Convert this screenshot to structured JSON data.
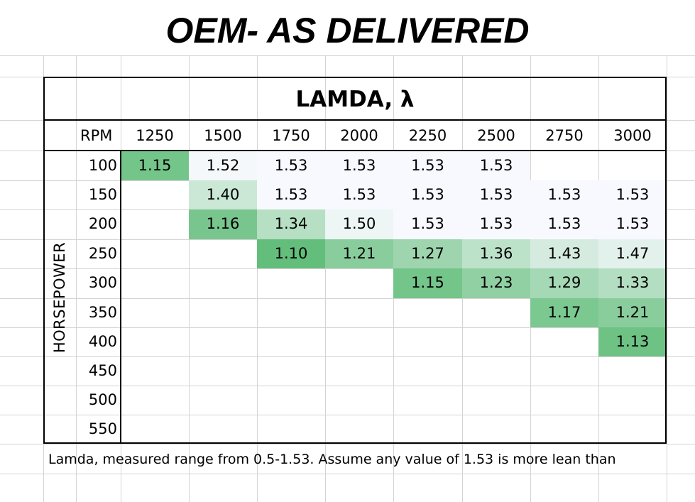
{
  "title": "OEM- AS DELIVERED",
  "chart_data": {
    "type": "heatmap",
    "title": "LAMDA, λ",
    "xlabel": "RPM",
    "ylabel": "HORSEPOWER",
    "x_categories": [
      "1250",
      "1500",
      "1750",
      "2000",
      "2250",
      "2500",
      "2750",
      "3000"
    ],
    "y_categories": [
      "100",
      "150",
      "200",
      "250",
      "300",
      "350",
      "400",
      "450",
      "500",
      "550"
    ],
    "values": [
      [
        1.15,
        1.52,
        1.53,
        1.53,
        1.53,
        1.53,
        null,
        null
      ],
      [
        null,
        1.4,
        1.53,
        1.53,
        1.53,
        1.53,
        1.53,
        1.53
      ],
      [
        null,
        1.16,
        1.34,
        1.5,
        1.53,
        1.53,
        1.53,
        1.53
      ],
      [
        null,
        null,
        1.1,
        1.21,
        1.27,
        1.36,
        1.43,
        1.47
      ],
      [
        null,
        null,
        null,
        null,
        1.15,
        1.23,
        1.29,
        1.33
      ],
      [
        null,
        null,
        null,
        null,
        null,
        null,
        1.17,
        1.21
      ],
      [
        null,
        null,
        null,
        null,
        null,
        null,
        null,
        1.13
      ],
      [
        null,
        null,
        null,
        null,
        null,
        null,
        null,
        null
      ],
      [
        null,
        null,
        null,
        null,
        null,
        null,
        null,
        null
      ],
      [
        null,
        null,
        null,
        null,
        null,
        null,
        null,
        null
      ]
    ],
    "color_scale": {
      "low": "#63BE7B",
      "high": "#F8F9FE"
    }
  },
  "footnote": "Lamda, measured range from 0.5-1.53. Assume any value of 1.53 is more lean than"
}
